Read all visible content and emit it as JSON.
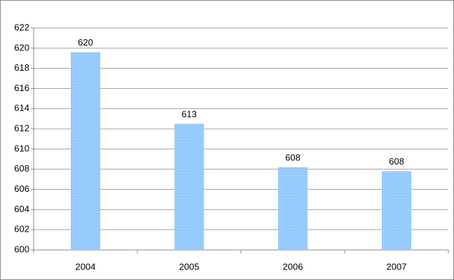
{
  "chart_data": {
    "type": "bar",
    "categories": [
      "2004",
      "2005",
      "2006",
      "2007"
    ],
    "values": [
      619.6,
      612.5,
      608.2,
      607.8
    ],
    "value_labels": [
      "620",
      "613",
      "608",
      "608"
    ],
    "color": "#99ccff",
    "ylim": [
      600,
      622
    ],
    "yticks": [
      600,
      602,
      604,
      606,
      608,
      610,
      612,
      614,
      616,
      618,
      620,
      622
    ],
    "grid": true
  }
}
